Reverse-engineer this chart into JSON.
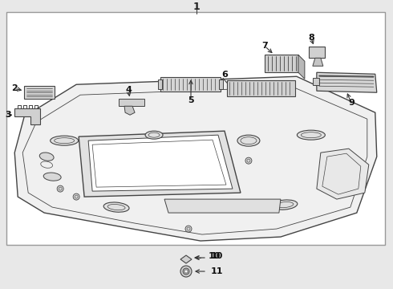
{
  "figsize": [
    4.9,
    3.6
  ],
  "dpi": 100,
  "bg_color": "#e8e8e8",
  "white": "#ffffff",
  "lc": "#444444",
  "gray1": "#d0d0d0",
  "gray2": "#bbbbbb",
  "gray3": "#c8c8c8"
}
